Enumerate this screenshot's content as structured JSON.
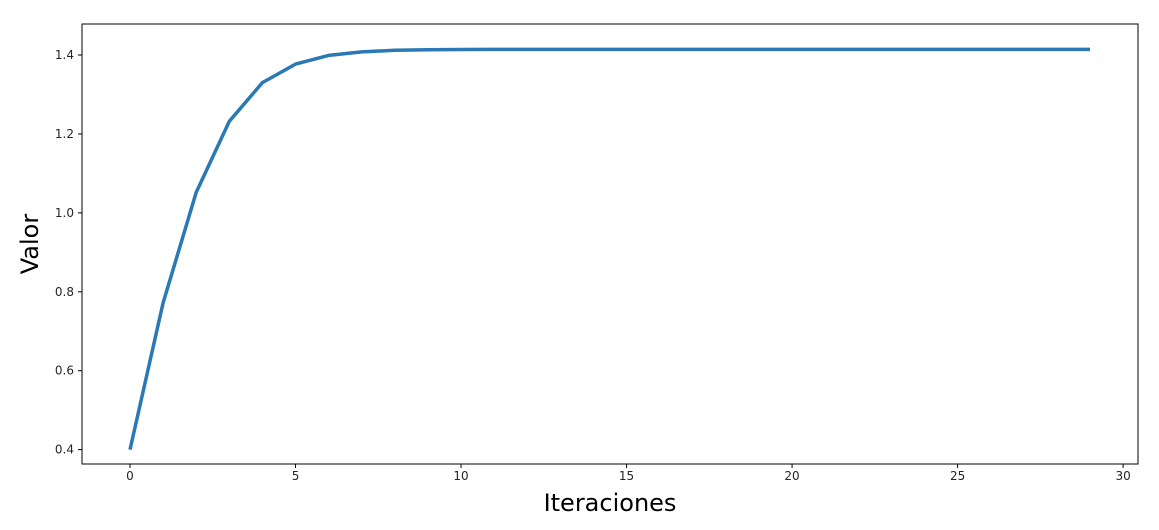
{
  "chart_data": {
    "type": "line",
    "title": "",
    "xlabel": "Iteraciones",
    "ylabel": "Valor",
    "xlim": [
      -1.45,
      30.45
    ],
    "ylim": [
      0.3636,
      1.4786
    ],
    "xticks": [
      0,
      5,
      10,
      15,
      20,
      25,
      30
    ],
    "xtick_labels": [
      "0",
      "5",
      "10",
      "15",
      "20",
      "25",
      "30"
    ],
    "yticks": [
      0.4,
      0.6,
      0.8,
      1.0,
      1.2,
      1.4
    ],
    "ytick_labels": [
      "0.4",
      "0.6",
      "0.8",
      "1.0",
      "1.2",
      "1.4"
    ],
    "grid": false,
    "legend": "none",
    "series": [
      {
        "color": "#2a78b4",
        "x": [
          0,
          1,
          2,
          3,
          4,
          5,
          6,
          7,
          8,
          9,
          10,
          11,
          12,
          13,
          14,
          15,
          16,
          17,
          18,
          19,
          20,
          21,
          22,
          23,
          24,
          25,
          26,
          27,
          28,
          29
        ],
        "y": [
          0.4,
          0.772,
          1.052,
          1.232,
          1.33,
          1.377,
          1.399,
          1.408,
          1.412,
          1.4135,
          1.414,
          1.4142,
          1.4142,
          1.4142,
          1.4142,
          1.4142,
          1.4142,
          1.4142,
          1.4142,
          1.4142,
          1.4142,
          1.4142,
          1.4142,
          1.4142,
          1.4142,
          1.4142,
          1.4142,
          1.4142,
          1.4142,
          1.4142
        ]
      }
    ]
  }
}
